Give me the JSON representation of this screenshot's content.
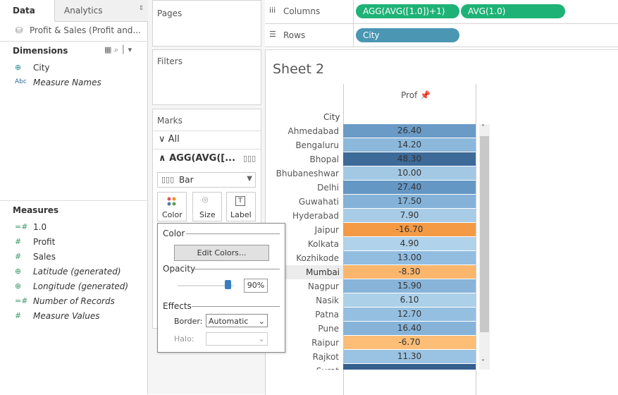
{
  "left_panel": {
    "tabs": [
      "Data",
      "Analytics"
    ],
    "data_source": "Profit & Sales (Profit and...",
    "dimensions": {
      "title": "Dimensions",
      "fields": [
        "City",
        "Measure Names"
      ]
    },
    "measures": {
      "title": "Measures",
      "fields": [
        "1.0",
        "Profit",
        "Sales",
        "Latitude (generated)",
        "Longitude (generated)",
        "Number of Records",
        "Measure Values"
      ]
    }
  },
  "cards": {
    "pages": "Pages",
    "filters": "Filters",
    "marks": {
      "title": "Marks",
      "all": "All",
      "measure": "AGG(AVG([...",
      "mark_type": "Bar",
      "buttons": [
        "Color",
        "Size",
        "Label"
      ]
    }
  },
  "shelves": {
    "columns": {
      "label": "Columns",
      "pills": [
        "AGG(AVG([1.0])+1)",
        "AVG(1.0)"
      ]
    },
    "rows": {
      "label": "Rows",
      "pills": [
        "City"
      ]
    }
  },
  "sheet": {
    "title": "Sheet 2",
    "column_header": "Prof",
    "row_header": "City",
    "rows": [
      {
        "city": "Ahmedabad",
        "value": "26.40",
        "color": "#6a9bc7"
      },
      {
        "city": "Bengaluru",
        "value": "14.20",
        "color": "#8cb8dc"
      },
      {
        "city": "Bhopal",
        "value": "48.30",
        "color": "#3d6a99"
      },
      {
        "city": "Bhubaneshwar",
        "value": "10.00",
        "color": "#a3c8e4"
      },
      {
        "city": "Delhi",
        "value": "27.40",
        "color": "#6597c4"
      },
      {
        "city": "Guwahati",
        "value": "17.50",
        "color": "#84b2d8"
      },
      {
        "city": "Hyderabad",
        "value": "7.90",
        "color": "#a8cce6"
      },
      {
        "city": "Jaipur",
        "value": "-16.70",
        "color": "#f49a45"
      },
      {
        "city": "Kolkata",
        "value": "4.90",
        "color": "#b0d2ea"
      },
      {
        "city": "Kozhikode",
        "value": "13.00",
        "color": "#93bde0"
      },
      {
        "city": "Mumbai",
        "value": "-8.30",
        "color": "#fbb66e"
      },
      {
        "city": "Nagpur",
        "value": "15.90",
        "color": "#88b4d9"
      },
      {
        "city": "Nasik",
        "value": "6.10",
        "color": "#acd0e8"
      },
      {
        "city": "Patna",
        "value": "12.70",
        "color": "#95bfe0"
      },
      {
        "city": "Pune",
        "value": "16.40",
        "color": "#87b3d9"
      },
      {
        "city": "Raipur",
        "value": "-6.70",
        "color": "#fcbd77"
      },
      {
        "city": "Rajkot",
        "value": "11.30",
        "color": "#9ac2e2"
      },
      {
        "city": "Surat",
        "color": "#345f8e"
      }
    ]
  },
  "color_popup": {
    "color_title": "Color",
    "edit_button": "Edit Colors...",
    "opacity_title": "Opacity",
    "opacity": "90%",
    "effects_title": "Effects",
    "border_label": "Border:",
    "border_value": "Automatic",
    "halo_label": "Halo:"
  }
}
